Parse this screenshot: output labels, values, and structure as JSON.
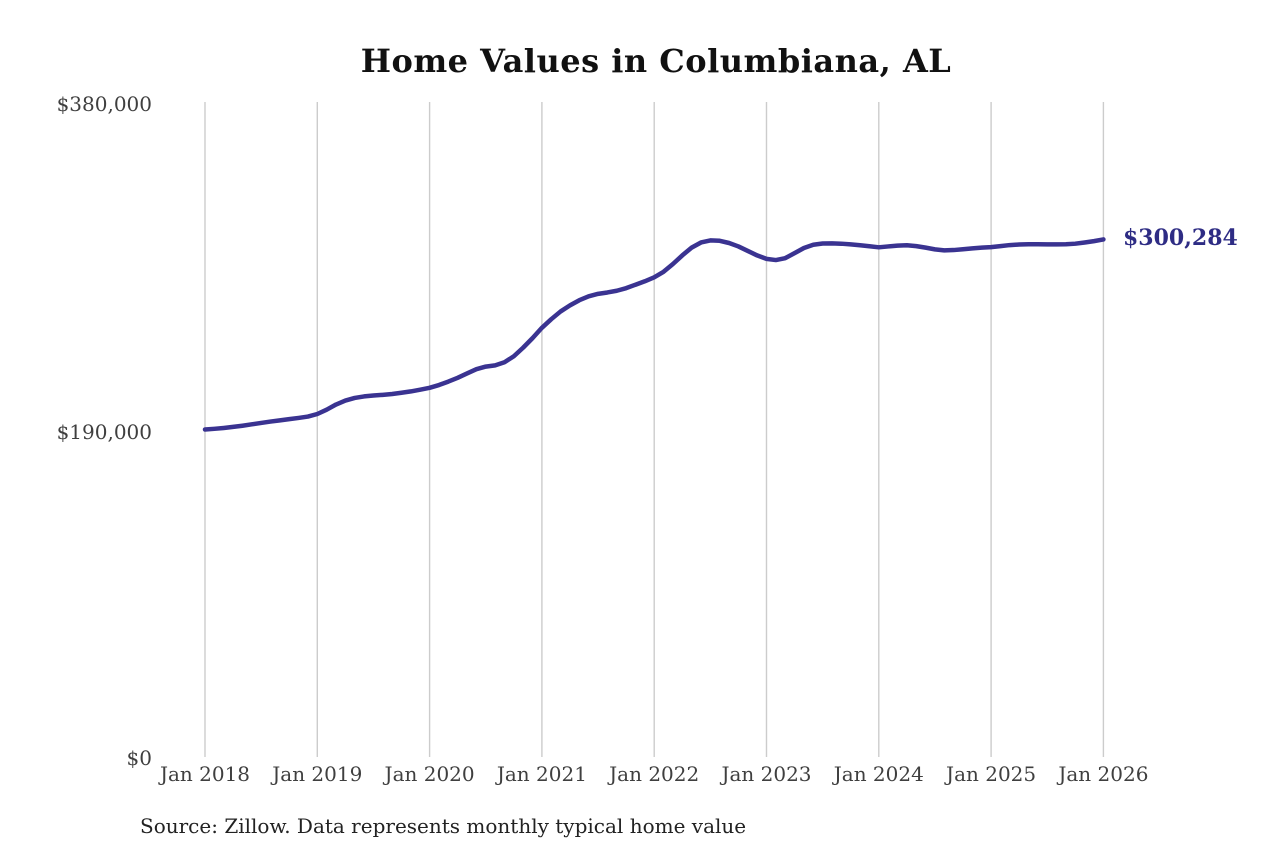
{
  "title": "Home Values in Columbiana, AL",
  "source_note": "Source: Zillow. Data represents monthly typical home value",
  "end_label": "$300,284",
  "colors": {
    "line": "#3a3391",
    "end_label": "#2e2c84",
    "axis_text": "#3f3f3f",
    "title_text": "#111111",
    "source_text": "#222222",
    "grid": "#cccccc",
    "background": "#ffffff"
  },
  "y_axis": {
    "ticks": [
      {
        "label": "$380,000",
        "value": 380000
      },
      {
        "label": "$190,000",
        "value": 190000
      },
      {
        "label": "$0",
        "value": 0
      }
    ]
  },
  "x_axis": {
    "ticks": [
      "Jan 2018",
      "Jan 2019",
      "Jan 2020",
      "Jan 2021",
      "Jan 2022",
      "Jan 2023",
      "Jan 2024",
      "Jan 2025",
      "Jan 2026"
    ]
  },
  "chart_data": {
    "type": "line",
    "title": "Home Values in Columbiana, AL",
    "xlabel": "",
    "ylabel": "",
    "ylim": [
      0,
      380000
    ],
    "grid": "vertical-only",
    "legend": "none",
    "x_start": "2018-01",
    "x_end": "2026-01",
    "interval": "monthly",
    "x_tick_labels": [
      "Jan 2018",
      "Jan 2019",
      "Jan 2020",
      "Jan 2021",
      "Jan 2022",
      "Jan 2023",
      "Jan 2024",
      "Jan 2025",
      "Jan 2026"
    ],
    "y_tick_labels": [
      "$0",
      "$190,000",
      "$380,000"
    ],
    "annotations": [
      {
        "text": "$300,284",
        "value": 300284,
        "position": "line-end"
      }
    ],
    "source": "Source: Zillow. Data represents monthly typical home value",
    "series": [
      {
        "name": "Monthly typical home value",
        "final_value": 300284,
        "values": [
          190000,
          190400,
          190900,
          191500,
          192200,
          193000,
          193800,
          194600,
          195300,
          196000,
          196700,
          197500,
          199000,
          201500,
          204500,
          206800,
          208300,
          209200,
          209700,
          210100,
          210600,
          211300,
          212100,
          213100,
          214200,
          215800,
          217800,
          220000,
          222500,
          225000,
          226500,
          227200,
          229000,
          232500,
          237500,
          243000,
          249000,
          254000,
          258500,
          262000,
          265000,
          267300,
          268700,
          269500,
          270500,
          272000,
          274000,
          276000,
          278300,
          281500,
          286000,
          291000,
          295500,
          298500,
          299700,
          299500,
          298200,
          296200,
          293600,
          291000,
          289000,
          288300,
          289400,
          292300,
          295300,
          297200,
          297900,
          298000,
          297800,
          297400,
          296900,
          296300,
          295700,
          296200,
          296700,
          296900,
          296400,
          295500,
          294500,
          293900,
          294100,
          294600,
          295100,
          295500,
          295800,
          296400,
          297000,
          297300,
          297500,
          297500,
          297400,
          297400,
          297500,
          297800,
          298500,
          299300,
          300284
        ]
      }
    ]
  }
}
